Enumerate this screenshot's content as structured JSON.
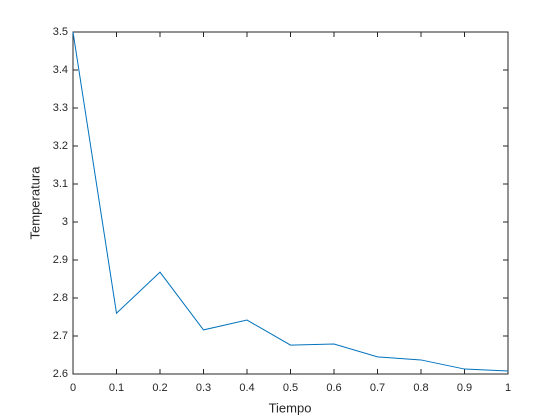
{
  "chart_data": {
    "type": "line",
    "x": [
      0,
      0.1,
      0.2,
      0.3,
      0.4,
      0.5,
      0.6,
      0.7,
      0.8,
      0.9,
      1
    ],
    "series": [
      {
        "color": "#0072bd",
        "values": [
          3.5,
          2.76,
          2.868,
          2.716,
          2.742,
          2.676,
          2.679,
          2.645,
          2.637,
          2.613,
          2.608
        ]
      }
    ],
    "x_label": "Tiempo",
    "y_label": "Temperatura",
    "xlim": [
      0,
      1
    ],
    "xticks": [
      0,
      0.1,
      0.2,
      0.3,
      0.4,
      0.5,
      0.6,
      0.7,
      0.8,
      0.9,
      1
    ],
    "ylim": [
      2.6,
      3.5
    ],
    "yticks": [
      2.6,
      2.7,
      2.8,
      2.9,
      3,
      3.1,
      3.2,
      3.3,
      3.4,
      3.5
    ],
    "grid": false
  }
}
